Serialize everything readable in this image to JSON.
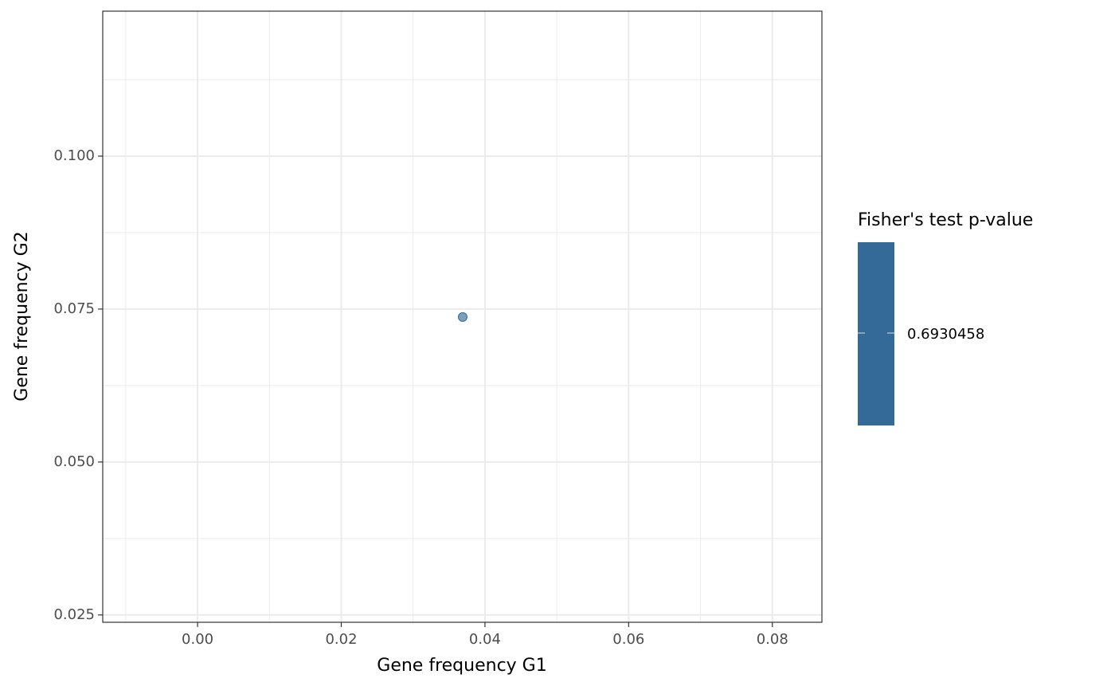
{
  "chart_data": {
    "type": "scatter",
    "x_label": "Gene frequency G1",
    "y_label": "Gene frequency G2",
    "x": [
      0.0369
    ],
    "values": [
      0.0737
    ],
    "color_values": [
      0.6930458
    ],
    "color": "#336a98",
    "xlim": [
      -0.0132,
      0.0869
    ],
    "xticks": [
      {
        "value": 0,
        "label": "0.00"
      },
      {
        "value": 0.02,
        "label": "0.02"
      },
      {
        "value": 0.04,
        "label": "0.04"
      },
      {
        "value": 0.06,
        "label": "0.06"
      },
      {
        "value": 0.08,
        "label": "0.08"
      }
    ],
    "ylim": [
      0.0238,
      0.1237
    ],
    "yticks": [
      {
        "value": 0.025,
        "label": "0.025"
      },
      {
        "value": 0.05,
        "label": "0.050"
      },
      {
        "value": 0.075,
        "label": "0.075"
      },
      {
        "value": 0.1,
        "label": "0.100"
      }
    ],
    "grid": true,
    "legend": {
      "title": "Fisher's test p-value",
      "ticks": [
        0.6930458
      ],
      "position": "right"
    }
  }
}
